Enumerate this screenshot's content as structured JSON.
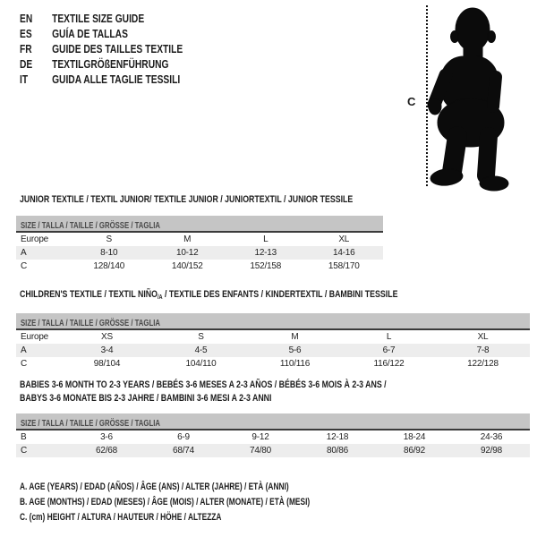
{
  "colors": {
    "text": "#1c1c1c",
    "silhouette": "#0b0b0b",
    "size_bar_bg": "#c5c5c5",
    "size_bar_text": "#4a4a4a",
    "alt_row_bg": "#ededed",
    "bar_divider": "#3a3a3a"
  },
  "languages": [
    {
      "code": "EN",
      "title": "TEXTILE SIZE GUIDE"
    },
    {
      "code": "ES",
      "title": "GUÍA DE TALLAS"
    },
    {
      "code": "FR",
      "title": "GUIDE DES TAILLES TEXTILE"
    },
    {
      "code": "DE",
      "title": "TEXTILGRÖßENFÜHRUNG"
    },
    {
      "code": "IT",
      "title": "GUIDA ALLE TAGLIE TESSILI"
    }
  ],
  "figure": {
    "height_label": "C"
  },
  "sections": [
    {
      "title": "JUNIOR TEXTILE / TEXTIL JUNIOR/ TEXTILE JUNIOR / JUNIORTEXTIL / JUNIOR TESSILE",
      "size_header": "SIZE / TALLA / TAILLE / GRÖSSE / TAGLIA",
      "rows": [
        [
          "Europe",
          "S",
          "M",
          "L",
          "XL"
        ],
        [
          "A",
          "8-10",
          "10-12",
          "12-13",
          "14-16"
        ],
        [
          "C",
          "128/140",
          "140/152",
          "152/158",
          "158/170"
        ]
      ]
    },
    {
      "title_pre": "CHILDREN'S TEXTILE / TEXTIL NIÑO",
      "title_sub": "/A",
      "title_post": " / TEXTILE DES ENFANTS / KINDERTEXTIL / BAMBINI TESSILE",
      "size_header": "SIZE / TALLA / TAILLE / GRÖSSE / TAGLIA",
      "rows": [
        [
          "Europe",
          "XS",
          "S",
          "M",
          "L",
          "XL"
        ],
        [
          "A",
          "3-4",
          "4-5",
          "5-6",
          "6-7",
          "7-8"
        ],
        [
          "C",
          "98/104",
          "104/110",
          "110/116",
          "116/122",
          "122/128"
        ]
      ]
    },
    {
      "title_line1": "BABIES 3-6 MONTH TO 2-3 YEARS / BEBÉS 3-6 MESES A 2-3 AÑOS / BÉBÉS 3-6 MOIS À 2-3 ANS /",
      "title_line2": "BABYS 3-6 MONATE BIS 2-3 JAHRE / BAMBINI 3-6 MESI A 2-3 ANNI",
      "size_header": "SIZE / TALLA / TAILLE / GRÖSSE / TAGLIA",
      "rows": [
        [
          "B",
          "3-6",
          "6-9",
          "9-12",
          "12-18",
          "18-24",
          "24-36"
        ],
        [
          "C",
          "62/68",
          "68/74",
          "74/80",
          "80/86",
          "86/92",
          "92/98"
        ]
      ]
    }
  ],
  "notes": [
    "A. AGE (YEARS) / EDAD (AÑOS) / ÂGE (ANS) / ALTER (JAHRE) / ETÀ (ANNI)",
    "B. AGE (MONTHS) / EDAD (MESES) / ÂGE (MOIS) / ALTER (MONATE) / ETÀ (MESI)",
    "C. (cm) HEIGHT / ALTURA / HAUTEUR / HÖHE / ALTEZZA"
  ]
}
